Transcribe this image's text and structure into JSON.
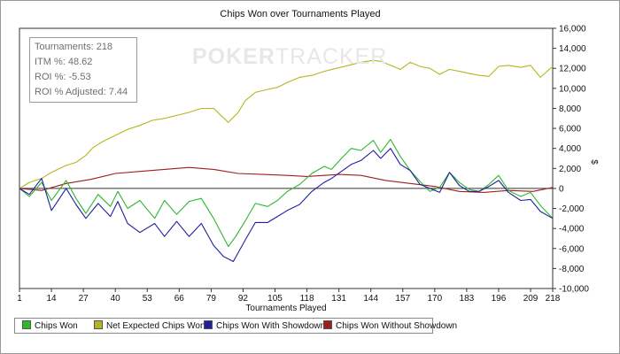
{
  "chart_data": {
    "type": "line",
    "title": "Chips Won over Tournaments Played",
    "xlabel": "Tournaments Played",
    "ylabel": "$",
    "x_ticks": [
      1,
      14,
      27,
      40,
      53,
      66,
      79,
      92,
      105,
      118,
      131,
      144,
      157,
      170,
      183,
      196,
      209,
      218
    ],
    "xlim": [
      1,
      218
    ],
    "ylim": [
      -10000,
      16000
    ],
    "y_ticks": [
      -10000,
      -8000,
      -6000,
      -4000,
      -2000,
      0,
      2000,
      4000,
      6000,
      8000,
      10000,
      12000,
      14000,
      16000
    ],
    "y_tick_labels": [
      "-10,000",
      "-8,000",
      "-6,000",
      "-4,000",
      "-2,000",
      "0",
      "2,000",
      "4,000",
      "6,000",
      "8,000",
      "10,000",
      "12,000",
      "14,000",
      "16,000"
    ],
    "grid": false,
    "legend_position": "bottom-left",
    "series": [
      {
        "name": "Chips Won",
        "color": "#2db82d",
        "x": [
          1,
          5,
          10,
          14,
          20,
          24,
          28,
          33,
          38,
          41,
          45,
          50,
          56,
          60,
          65,
          70,
          75,
          80,
          86,
          89,
          93,
          97,
          102,
          106,
          110,
          115,
          120,
          125,
          128,
          132,
          136,
          140,
          145,
          148,
          152,
          156,
          160,
          164,
          168,
          172,
          176,
          180,
          184,
          188,
          192,
          196,
          200,
          205,
          209,
          213,
          218
        ],
        "y": [
          0,
          -800,
          600,
          -1200,
          800,
          -1000,
          -2500,
          -600,
          -1800,
          -300,
          -2000,
          -1200,
          -3000,
          -1200,
          -2600,
          -1300,
          -1000,
          -3000,
          -5800,
          -4800,
          -3200,
          -1500,
          -1800,
          -1200,
          -300,
          400,
          1500,
          2200,
          1900,
          3000,
          4000,
          3800,
          4800,
          3600,
          4900,
          3200,
          1800,
          700,
          -300,
          100,
          1600,
          600,
          -100,
          -300,
          400,
          1300,
          -200,
          -800,
          -400,
          -1700,
          -3000
        ]
      },
      {
        "name": "Net Expected Chips Won",
        "color": "#b5b520",
        "x": [
          1,
          5,
          10,
          14,
          20,
          24,
          28,
          31,
          35,
          40,
          45,
          50,
          55,
          60,
          65,
          70,
          75,
          80,
          86,
          90,
          93,
          97,
          102,
          106,
          110,
          115,
          120,
          125,
          130,
          135,
          140,
          145,
          148,
          152,
          156,
          160,
          164,
          168,
          172,
          176,
          180,
          184,
          188,
          192,
          196,
          200,
          205,
          209,
          213,
          218
        ],
        "y": [
          0,
          600,
          1000,
          1600,
          2300,
          2600,
          3300,
          4100,
          4700,
          5300,
          5900,
          6300,
          6800,
          7000,
          7300,
          7600,
          8000,
          8000,
          6600,
          7600,
          8800,
          9600,
          9900,
          10100,
          10600,
          11100,
          11300,
          11700,
          12000,
          12300,
          12600,
          12800,
          12700,
          12300,
          11900,
          12600,
          12200,
          12000,
          11400,
          11900,
          11700,
          11500,
          11300,
          11200,
          12200,
          12300,
          12100,
          12300,
          11100,
          12200
        ]
      },
      {
        "name": "Chips Won With Showdown",
        "color": "#1f1fa0",
        "x": [
          1,
          5,
          10,
          14,
          20,
          24,
          28,
          33,
          38,
          41,
          45,
          50,
          56,
          60,
          65,
          70,
          75,
          80,
          84,
          88,
          93,
          97,
          102,
          106,
          110,
          115,
          120,
          125,
          128,
          132,
          136,
          140,
          145,
          148,
          152,
          156,
          160,
          164,
          168,
          172,
          176,
          180,
          184,
          188,
          192,
          196,
          200,
          205,
          209,
          213,
          218
        ],
        "y": [
          0,
          -600,
          1000,
          -2200,
          0,
          -1600,
          -3000,
          -1500,
          -2800,
          -1300,
          -3500,
          -4400,
          -3500,
          -4800,
          -3300,
          -4800,
          -3500,
          -5700,
          -6800,
          -7300,
          -5100,
          -3400,
          -3400,
          -2800,
          -2200,
          -1600,
          -300,
          600,
          1000,
          1700,
          2400,
          2800,
          3800,
          3000,
          4000,
          2400,
          1800,
          400,
          0,
          -400,
          1600,
          300,
          -300,
          -300,
          200,
          800,
          -400,
          -1200,
          -1100,
          -2300,
          -3000
        ]
      },
      {
        "name": "Chips Won Without Showdown",
        "color": "#a01d1d",
        "x": [
          1,
          10,
          20,
          30,
          40,
          50,
          60,
          70,
          80,
          90,
          100,
          110,
          118,
          125,
          131,
          140,
          150,
          160,
          170,
          180,
          190,
          200,
          210,
          218
        ],
        "y": [
          0,
          -200,
          500,
          900,
          1500,
          1700,
          1900,
          2100,
          1900,
          1500,
          1400,
          1300,
          1200,
          1300,
          1400,
          1300,
          800,
          500,
          200,
          -300,
          -400,
          -200,
          -300,
          100
        ]
      }
    ]
  },
  "stats_box": {
    "tournaments": "Tournaments: 218",
    "itm": "ITM %: 48.62",
    "roi": "ROI %: -5.53",
    "roi_adjusted": "ROI % Adjusted: 7.44"
  },
  "watermark": {
    "brand_bold": "POKER",
    "brand_light": "TRACKER"
  },
  "legend": {
    "items": [
      {
        "label": "Chips Won",
        "color": "#2db82d"
      },
      {
        "label": "Net Expected Chips Won",
        "color": "#b5b520"
      },
      {
        "label": "Chips Won With Showdown",
        "color": "#1f1fa0"
      },
      {
        "label": "Chips Won Without Showdown",
        "color": "#a01d1d"
      }
    ]
  }
}
